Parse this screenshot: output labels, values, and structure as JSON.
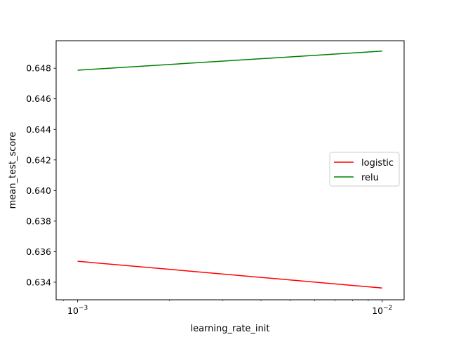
{
  "chart_data": {
    "type": "line",
    "title": "",
    "xlabel": "learning_rate_init",
    "ylabel": "mean_test_score",
    "xscale": "log",
    "x": [
      0.001,
      0.01
    ],
    "xlim": [
      0.00085,
      0.0118
    ],
    "ylim": [
      0.63285,
      0.6498
    ],
    "x_ticks": [
      {
        "value": 0.001,
        "base": "10",
        "exp": "−3"
      },
      {
        "value": 0.01,
        "base": "10",
        "exp": "−2"
      }
    ],
    "y_ticks": [
      {
        "value": 0.634,
        "label": "0.634"
      },
      {
        "value": 0.636,
        "label": "0.636"
      },
      {
        "value": 0.638,
        "label": "0.638"
      },
      {
        "value": 0.64,
        "label": "0.640"
      },
      {
        "value": 0.642,
        "label": "0.642"
      },
      {
        "value": 0.644,
        "label": "0.644"
      },
      {
        "value": 0.646,
        "label": "0.646"
      },
      {
        "value": 0.648,
        "label": "0.648"
      }
    ],
    "series": [
      {
        "name": "logistic",
        "color": "#ff0000",
        "values": [
          0.63537,
          0.63362
        ]
      },
      {
        "name": "relu",
        "color": "#008000",
        "values": [
          0.64787,
          0.64912
        ]
      }
    ],
    "legend_position": "center-right",
    "grid": false
  }
}
